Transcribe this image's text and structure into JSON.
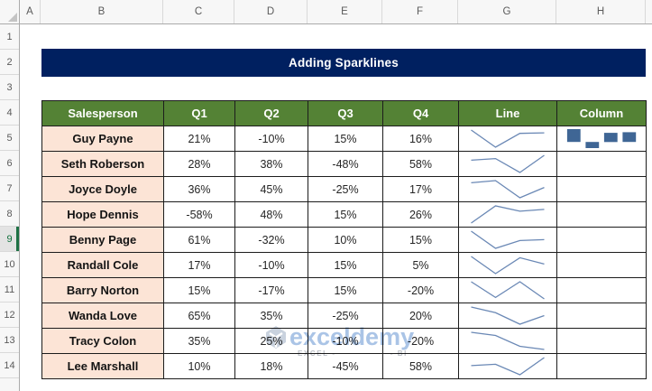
{
  "banner": {
    "title": "Adding Sparklines"
  },
  "columns": {
    "letters": [
      "A",
      "B",
      "C",
      "D",
      "E",
      "F",
      "G",
      "H"
    ]
  },
  "rows": {
    "numbers": [
      "1",
      "2",
      "3",
      "4",
      "5",
      "6",
      "7",
      "8",
      "9",
      "10",
      "11",
      "12",
      "13",
      "14"
    ],
    "selected": "9"
  },
  "table": {
    "headers": [
      "Salesperson",
      "Q1",
      "Q2",
      "Q3",
      "Q4",
      "Line",
      "Column"
    ],
    "rows": [
      {
        "name": "Guy Payne",
        "values": [
          21,
          -10,
          15,
          16
        ],
        "has_column_sparkline": true
      },
      {
        "name": "Seth Roberson",
        "values": [
          28,
          38,
          -48,
          58
        ],
        "has_column_sparkline": false
      },
      {
        "name": "Joyce Doyle",
        "values": [
          36,
          45,
          -25,
          17
        ],
        "has_column_sparkline": false
      },
      {
        "name": "Hope Dennis",
        "values": [
          -58,
          48,
          15,
          26
        ],
        "has_column_sparkline": false
      },
      {
        "name": "Benny Page",
        "values": [
          61,
          -32,
          10,
          15
        ],
        "has_column_sparkline": false
      },
      {
        "name": "Randall Cole",
        "values": [
          17,
          -10,
          15,
          5
        ],
        "has_column_sparkline": false
      },
      {
        "name": "Barry Norton",
        "values": [
          15,
          -17,
          15,
          -20
        ],
        "has_column_sparkline": false
      },
      {
        "name": "Wanda Love",
        "values": [
          65,
          35,
          -25,
          20
        ],
        "has_column_sparkline": false
      },
      {
        "name": "Tracy Colon",
        "values": [
          35,
          25,
          -10,
          -20
        ],
        "has_column_sparkline": false
      },
      {
        "name": "Lee Marshall",
        "values": [
          10,
          18,
          -45,
          58
        ],
        "has_column_sparkline": false
      }
    ],
    "value_suffix": "%"
  },
  "watermark": {
    "brand": "exceldemy",
    "caption_left": "EXCEL -",
    "caption_right": "- BI"
  },
  "colors": {
    "banner_navy": "#002060",
    "header_green": "#548235",
    "name_fill": "#FCE4D6",
    "sparkline_line": "#6a88b5",
    "sparkline_bar": "#3f6695",
    "selected_row_green": "#1e7145"
  }
}
